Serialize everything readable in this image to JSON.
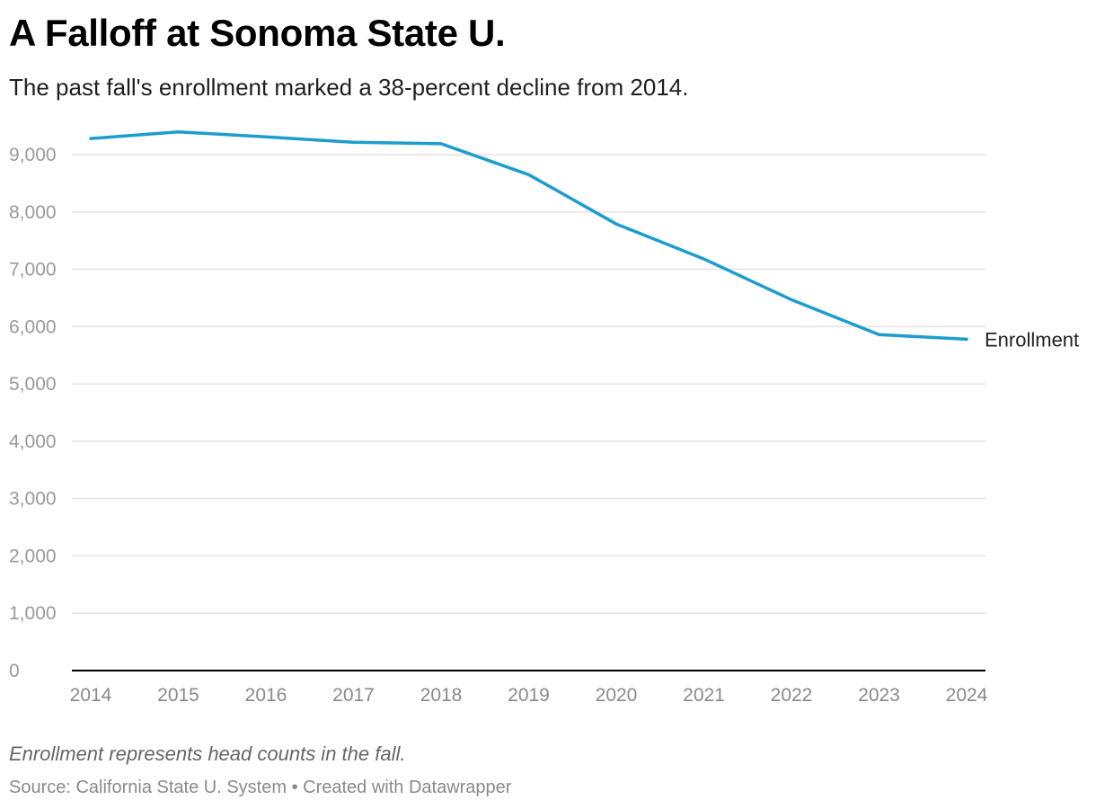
{
  "header": {
    "title": "A Falloff at Sonoma State U.",
    "subtitle": "The past fall's enrollment marked a 38-percent decline from 2014."
  },
  "footer": {
    "note": "Enrollment represents head counts in the fall.",
    "source": "Source: California State U. System",
    "separator": "•",
    "credit": "Created with Datawrapper",
    "line": "Source: California State U. System • Created with Datawrapper"
  },
  "chart_data": {
    "type": "line",
    "title": "A Falloff at Sonoma State U.",
    "subtitle": "The past fall's enrollment marked a 38-percent decline from 2014.",
    "xlabel": "",
    "ylabel": "",
    "x": [
      2014,
      2015,
      2016,
      2017,
      2018,
      2019,
      2020,
      2021,
      2022,
      2023,
      2024
    ],
    "series": [
      {
        "name": "Enrollment",
        "color": "#1d9dcd",
        "values": [
          9280,
          9395,
          9310,
          9215,
          9190,
          8650,
          7790,
          7180,
          6470,
          5860,
          5780
        ]
      }
    ],
    "ylim": [
      0,
      9000
    ],
    "yticks": [
      0,
      1000,
      2000,
      3000,
      4000,
      5000,
      6000,
      7000,
      8000,
      9000
    ],
    "ytick_labels": [
      "0",
      "1,000",
      "2,000",
      "3,000",
      "4,000",
      "5,000",
      "6,000",
      "7,000",
      "8,000",
      "9,000"
    ],
    "xtick_labels": [
      "2014",
      "2015",
      "2016",
      "2017",
      "2018",
      "2019",
      "2020",
      "2021",
      "2022",
      "2023",
      "2024"
    ],
    "grid": true,
    "legend": "direct label at line end (right)",
    "series_label": "Enrollment",
    "colors": {
      "line": "#1d9dcd",
      "grid": "#e3e3e3",
      "baseline": "#000000",
      "tick_text": "#9a9a9a"
    }
  }
}
